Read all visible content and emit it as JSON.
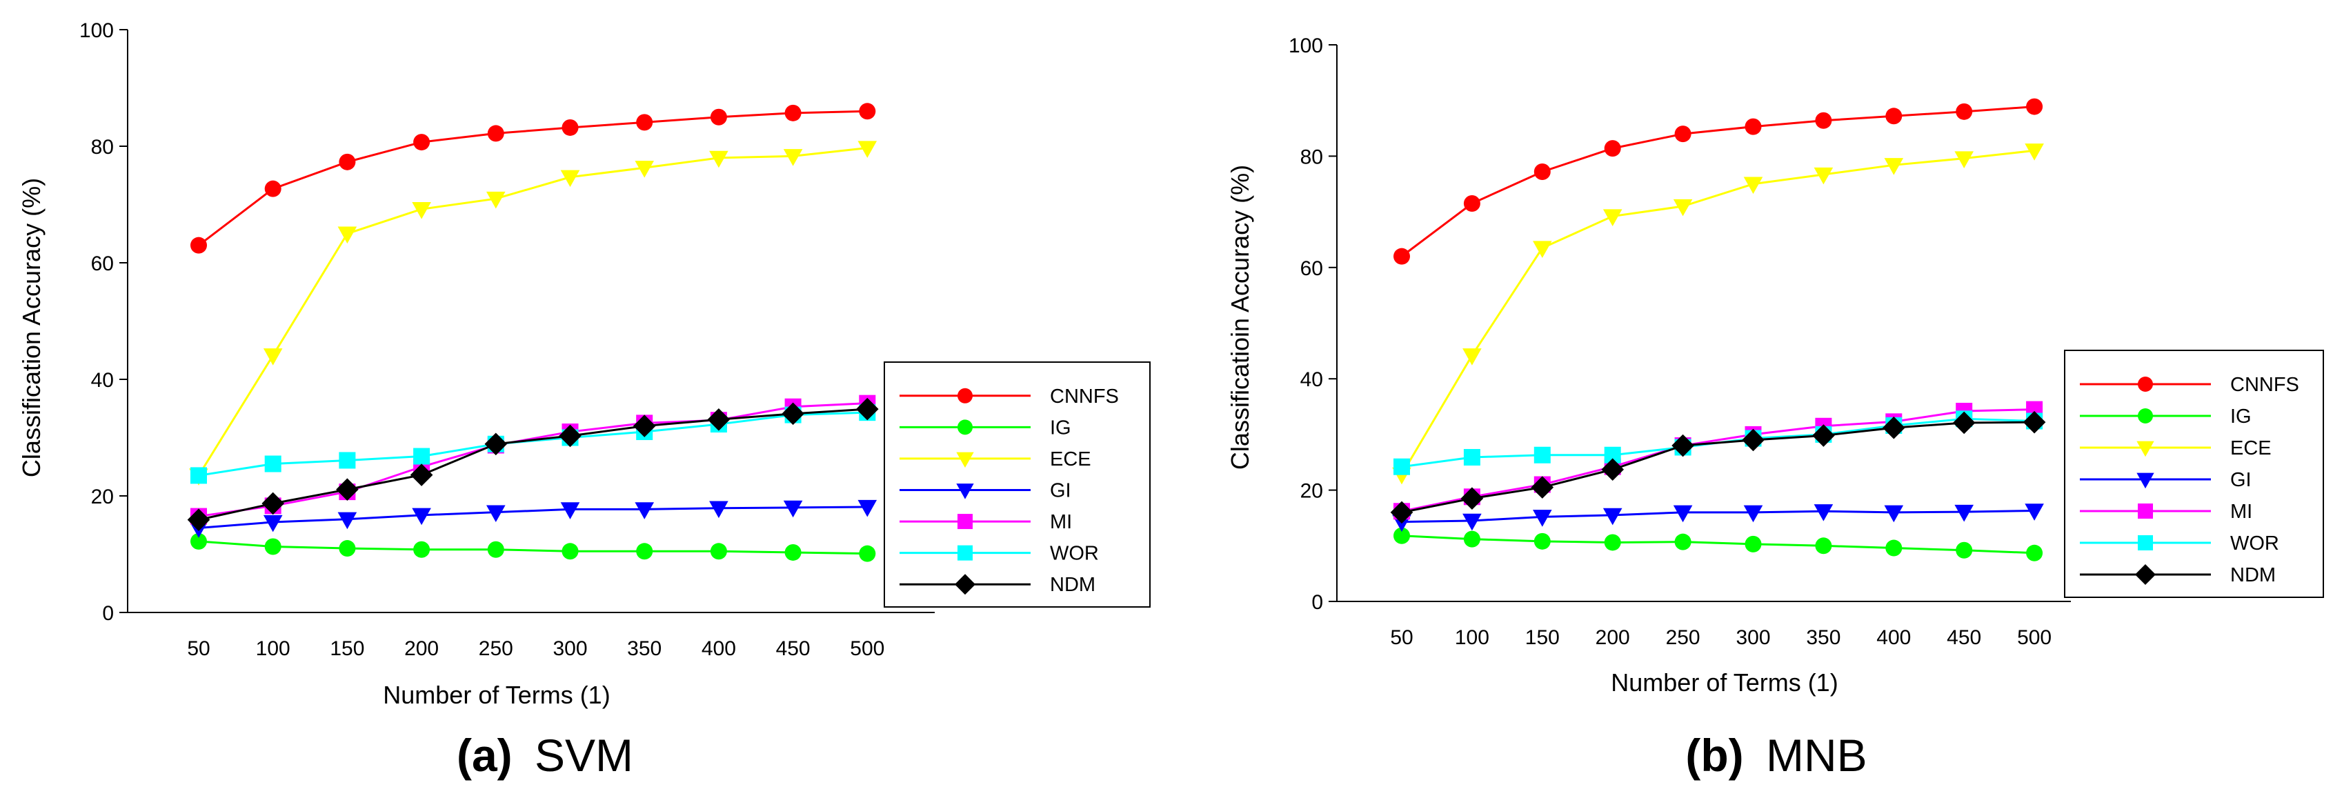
{
  "chart_data": [
    {
      "type": "line",
      "caption_letter": "(a)",
      "caption_text": "SVM",
      "xlabel": "Number of Terms (1)",
      "ylabel": "Classification Accuracy (%)",
      "ylim": [
        0,
        100
      ],
      "yticks": [
        0,
        20,
        40,
        60,
        80,
        100
      ],
      "x": [
        50,
        100,
        150,
        200,
        250,
        300,
        350,
        400,
        450,
        500
      ],
      "legend_position": "right",
      "grid": false,
      "series": [
        {
          "name": "CNNFS",
          "color": "#ff0000",
          "marker": "circle",
          "values": [
            63,
            72.7,
            77.3,
            80.7,
            82.2,
            83.2,
            84.1,
            85,
            85.7,
            86
          ]
        },
        {
          "name": "IG",
          "color": "#00ff00",
          "marker": "circle",
          "values": [
            12.2,
            11.3,
            11,
            10.8,
            10.8,
            10.5,
            10.5,
            10.5,
            10.3,
            10.1
          ]
        },
        {
          "name": "ECE",
          "color": "#ffff00",
          "marker": "triangle-down",
          "values": [
            23.5,
            44.1,
            65,
            69.2,
            71,
            74.7,
            76.3,
            78,
            78.3,
            79.7
          ]
        },
        {
          "name": "GI",
          "color": "#0000ff",
          "marker": "triangle-down",
          "values": [
            14.5,
            15.5,
            16,
            16.7,
            17.2,
            17.7,
            17.7,
            17.9,
            18,
            18.1
          ]
        },
        {
          "name": "MI",
          "color": "#ff00ff",
          "marker": "square",
          "values": [
            16.5,
            18.3,
            20.7,
            25,
            28.7,
            31,
            32.5,
            33,
            35.3,
            35.9
          ]
        },
        {
          "name": "WOR",
          "color": "#00ffff",
          "marker": "square",
          "values": [
            23.5,
            25.5,
            26.1,
            26.8,
            28.9,
            30,
            31,
            32.3,
            33.9,
            34.3
          ]
        },
        {
          "name": "NDM",
          "color": "#000000",
          "marker": "diamond",
          "values": [
            15.9,
            18.7,
            21.1,
            23.6,
            28.9,
            30.3,
            32,
            33.1,
            34.1,
            34.9
          ]
        }
      ]
    },
    {
      "type": "line",
      "caption_letter": "(b)",
      "caption_text": "MNB",
      "xlabel": "Number of Terms (1)",
      "ylabel": "Classificatioin Accuracy (%)",
      "ylim": [
        0,
        100
      ],
      "yticks": [
        0,
        20,
        40,
        60,
        80,
        100
      ],
      "x": [
        50,
        100,
        150,
        200,
        250,
        300,
        350,
        400,
        450,
        500
      ],
      "legend_position": "right",
      "grid": false,
      "series": [
        {
          "name": "CNNFS",
          "color": "#ff0000",
          "marker": "circle",
          "values": [
            62,
            71.5,
            77.2,
            81.4,
            84,
            85.3,
            86.4,
            87.2,
            88,
            88.9
          ]
        },
        {
          "name": "IG",
          "color": "#00ff00",
          "marker": "circle",
          "values": [
            11.8,
            11.2,
            10.8,
            10.6,
            10.7,
            10.3,
            10,
            9.6,
            9.2,
            8.7
          ]
        },
        {
          "name": "ECE",
          "color": "#ffff00",
          "marker": "triangle-down",
          "values": [
            22.8,
            44.2,
            63.5,
            69.2,
            71,
            75,
            76.7,
            78.4,
            79.6,
            81
          ]
        },
        {
          "name": "GI",
          "color": "#0000ff",
          "marker": "triangle-down",
          "values": [
            14.3,
            14.5,
            15.2,
            15.5,
            16,
            16,
            16.2,
            16,
            16.1,
            16.3
          ]
        },
        {
          "name": "MI",
          "color": "#ff00ff",
          "marker": "square",
          "values": [
            16.2,
            18.8,
            21,
            24.2,
            28,
            30,
            31.5,
            32.3,
            34.2,
            34.5
          ]
        },
        {
          "name": "WOR",
          "color": "#00ffff",
          "marker": "square",
          "values": [
            24.2,
            25.9,
            26.3,
            26.3,
            27.7,
            29.3,
            30,
            31.6,
            32.8,
            32.4
          ]
        },
        {
          "name": "NDM",
          "color": "#000000",
          "marker": "diamond",
          "values": [
            16,
            18.5,
            20.5,
            23.7,
            28,
            29,
            29.8,
            31.2,
            32.1,
            32.2
          ]
        }
      ]
    }
  ]
}
